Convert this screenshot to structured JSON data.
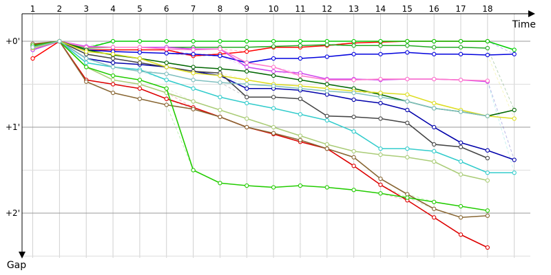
{
  "chart_data": {
    "type": "line",
    "title": "",
    "xlabel": "Time",
    "ylabel": "Gap",
    "x_ticks": [
      "1",
      "2",
      "3",
      "4",
      "5",
      "6",
      "7",
      "8",
      "9",
      "10",
      "11",
      "12",
      "13",
      "14",
      "15",
      "16",
      "17",
      "18"
    ],
    "y_ticks": [
      "+0'",
      "+1'",
      "+2'"
    ],
    "y_tick_values": [
      0,
      1,
      2
    ],
    "y_inverted": true,
    "xlim": [
      0.6,
      19.6
    ],
    "ylim": [
      0,
      2.55
    ],
    "grid": true,
    "legend": "none",
    "series": [
      {
        "color": "#ff0000",
        "values": [
          0.2,
          0,
          0.1,
          0.1,
          0.1,
          0.1,
          0.17,
          0.15,
          0.12,
          0.07,
          0.07,
          0.05,
          0.02,
          0.01,
          0,
          0,
          0,
          0,
          null
        ]
      },
      {
        "color": "#00cc00",
        "values": [
          0.06,
          0,
          0.08,
          0,
          0,
          0,
          0,
          0,
          0,
          0,
          0,
          0,
          0,
          0,
          0,
          0,
          0,
          0,
          0.1
        ]
      },
      {
        "color": "#0000dd",
        "values": [
          0.1,
          0,
          0.1,
          0.12,
          0.13,
          0.14,
          0.15,
          0.17,
          0.25,
          0.2,
          0.2,
          0.18,
          0.15,
          0.15,
          0.13,
          0.15,
          0.15,
          0.16,
          0.15
        ]
      },
      {
        "color": "#22aa22",
        "values": [
          0.08,
          0,
          0.08,
          0.07,
          0.07,
          0.07,
          0.07,
          0.07,
          0.07,
          0.06,
          0.05,
          0.04,
          0.05,
          0.05,
          0.05,
          0.07,
          0.07,
          0.08,
          null
        ]
      },
      {
        "color": "#cc44ee",
        "values": [
          0.1,
          0,
          0.06,
          0.07,
          0.07,
          0.07,
          0.09,
          0.09,
          0.3,
          0.35,
          0.37,
          0.44,
          0.44,
          0.45,
          0.44,
          0.44,
          0.45,
          0.47,
          null
        ]
      },
      {
        "color": "#ff77cc",
        "values": [
          0.08,
          0,
          0.07,
          0.07,
          0.07,
          0.09,
          0.1,
          0.09,
          0.25,
          0.3,
          0.4,
          0.45,
          0.45,
          0.44,
          0.44,
          0.44,
          0.45,
          0.46,
          null
        ]
      },
      {
        "color": "#006600",
        "values": [
          0.05,
          0,
          0.1,
          0.16,
          0.2,
          0.25,
          0.3,
          0.32,
          0.35,
          0.4,
          0.45,
          0.5,
          0.55,
          0.62,
          0.7,
          0.78,
          0.82,
          0.87,
          0.8
        ]
      },
      {
        "color": "#0000aa",
        "values": [
          0.07,
          0,
          0.2,
          0.25,
          0.27,
          0.3,
          0.35,
          0.4,
          0.55,
          0.55,
          0.57,
          0.62,
          0.68,
          0.72,
          0.8,
          1.0,
          1.18,
          1.27,
          1.38
        ]
      },
      {
        "color": "#444444",
        "values": [
          0.06,
          0,
          0.15,
          0.2,
          0.25,
          0.3,
          0.35,
          0.37,
          0.65,
          0.65,
          0.67,
          0.87,
          0.88,
          0.9,
          0.95,
          1.2,
          1.23,
          1.36,
          null
        ]
      },
      {
        "color": "#33cccc",
        "values": [
          0.05,
          0,
          0.25,
          0.3,
          0.33,
          0.45,
          0.55,
          0.65,
          0.72,
          0.78,
          0.85,
          0.92,
          1.05,
          1.25,
          1.25,
          1.28,
          1.4,
          1.53,
          1.53
        ]
      },
      {
        "color": "#aacc77",
        "values": [
          0.05,
          0,
          0.3,
          0.45,
          0.5,
          0.6,
          0.7,
          0.8,
          0.9,
          1.0,
          1.1,
          1.2,
          1.28,
          1.32,
          1.35,
          1.4,
          1.55,
          1.62,
          null
        ]
      },
      {
        "color": "#dd0000",
        "values": [
          0.04,
          0,
          0.45,
          0.5,
          0.55,
          0.67,
          0.77,
          0.88,
          1.0,
          1.08,
          1.17,
          1.25,
          1.45,
          1.67,
          1.85,
          2.05,
          2.25,
          2.4,
          null
        ]
      },
      {
        "color": "#886633",
        "values": [
          0.03,
          0,
          0.47,
          0.6,
          0.67,
          0.74,
          0.79,
          0.88,
          1.0,
          1.07,
          1.15,
          1.25,
          1.35,
          1.6,
          1.78,
          1.95,
          2.05,
          2.03,
          null
        ]
      },
      {
        "color": "#22cc00",
        "values": [
          0.05,
          0,
          0.3,
          0.4,
          0.45,
          0.55,
          1.5,
          1.65,
          1.68,
          1.7,
          1.68,
          1.7,
          1.73,
          1.77,
          1.82,
          1.87,
          1.92,
          1.97,
          null
        ]
      },
      {
        "color": "#dddd22",
        "values": [
          0.08,
          0,
          0.12,
          0.15,
          0.2,
          0.3,
          0.37,
          0.4,
          0.45,
          0.5,
          0.52,
          0.55,
          0.58,
          0.6,
          0.62,
          0.72,
          0.8,
          0.87,
          0.9
        ]
      },
      {
        "color": "#7fbfbf",
        "values": [
          0.07,
          0,
          0.2,
          0.3,
          0.35,
          0.38,
          0.45,
          0.48,
          0.5,
          0.52,
          0.55,
          0.58,
          0.6,
          0.65,
          0.7,
          0.78,
          0.82,
          0.87,
          null
        ]
      }
    ]
  }
}
